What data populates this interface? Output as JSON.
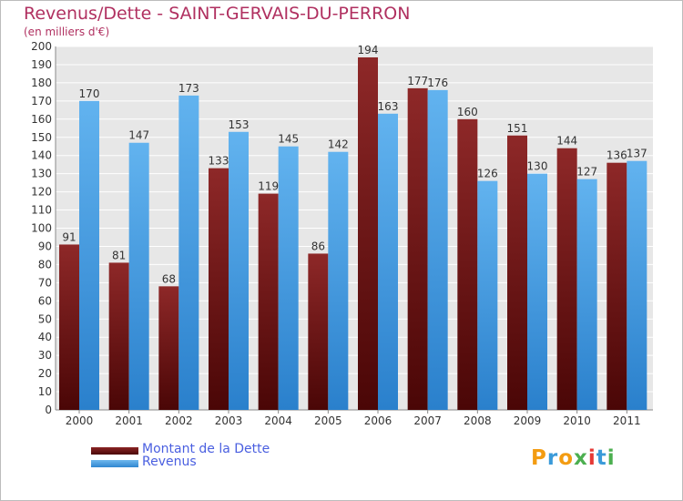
{
  "title": "Revenus/Dette - SAINT-GERVAIS-DU-PERRON",
  "subtitle": "(en milliers d'€)",
  "logo": "Proxiti",
  "colors": {
    "title": "#b03060",
    "dette": "#7a1a1a",
    "revenus": "#4fa3e3",
    "legend_text": "#4a5fe0"
  },
  "chart_data": {
    "type": "bar",
    "categories": [
      "2000",
      "2001",
      "2002",
      "2003",
      "2004",
      "2005",
      "2006",
      "2007",
      "2008",
      "2009",
      "2010",
      "2011"
    ],
    "series": [
      {
        "name": "Montant de la Dette",
        "values": [
          91,
          81,
          68,
          133,
          119,
          86,
          194,
          177,
          160,
          151,
          144,
          136
        ]
      },
      {
        "name": "Revenus",
        "values": [
          170,
          147,
          173,
          153,
          145,
          142,
          163,
          176,
          126,
          130,
          127,
          137
        ]
      }
    ],
    "ylim": [
      0,
      200
    ],
    "ytick_step": 10,
    "grid": true,
    "legend": "bottom-left"
  }
}
